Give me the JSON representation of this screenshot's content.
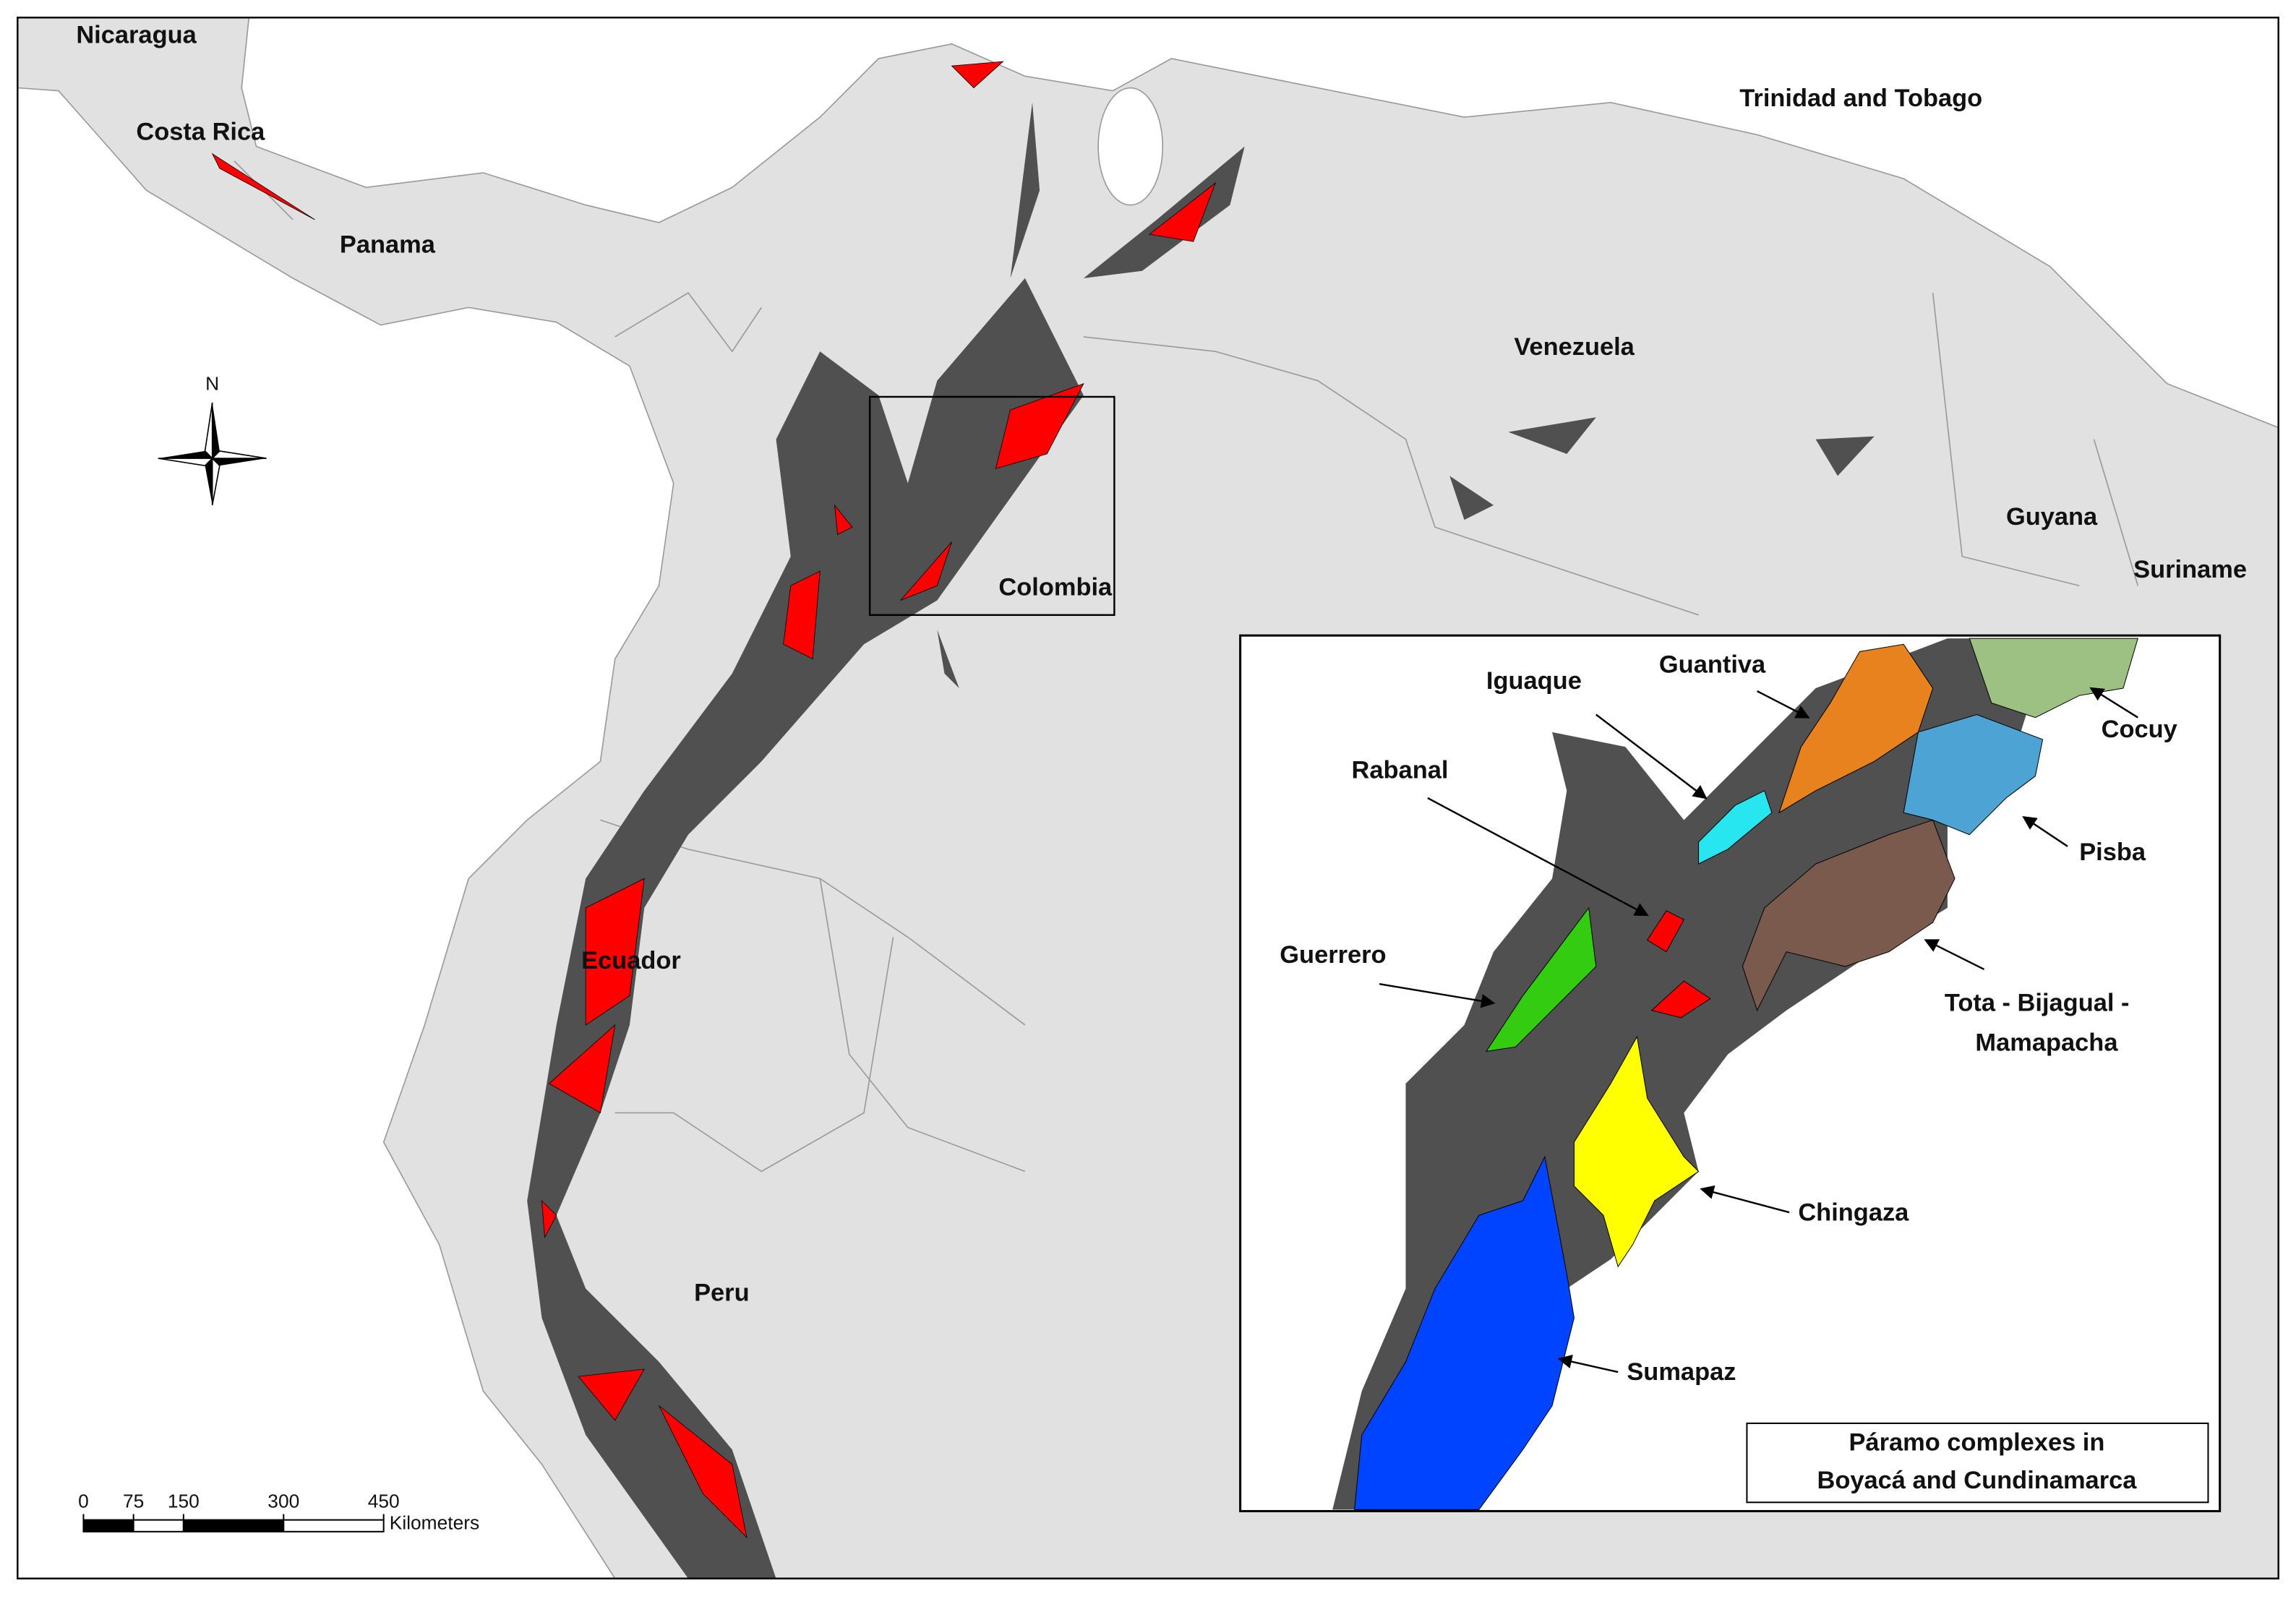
{
  "map": {
    "countries": [
      "Nicaragua",
      "Costa Rica",
      "Panama",
      "Venezuela",
      "Trinidad and Tobago",
      "Guyana",
      "Suriname",
      "Colombia",
      "Ecuador",
      "Peru"
    ],
    "north": "N"
  },
  "scale_bar": {
    "ticks": [
      0,
      75,
      150,
      300,
      450
    ],
    "unit": "Kilometers"
  },
  "inset": {
    "title": [
      "Páramo complexes in",
      "Boyacá and Cundinamarca"
    ],
    "complexes": [
      "Iguaque",
      "Guantiva",
      "Rabanal",
      "Guerrero",
      "Cocuy",
      "Pisba",
      "Tota - Bijagual -",
      "Mamapacha",
      "Chingaza",
      "Sumapaz"
    ]
  }
}
